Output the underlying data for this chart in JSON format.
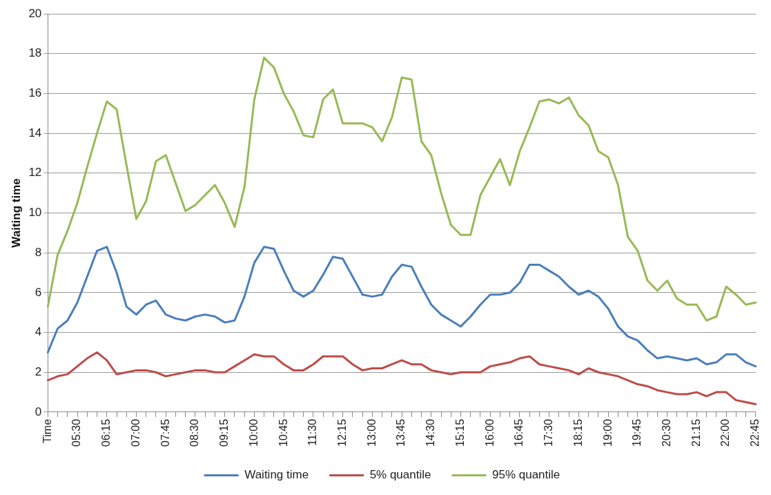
{
  "chart_data": {
    "type": "line",
    "ylabel": "Waiting time",
    "categories": [
      "Time",
      null,
      null,
      "05:30",
      null,
      null,
      "06:15",
      null,
      null,
      "07:00",
      null,
      null,
      "07:45",
      null,
      null,
      "08:30",
      null,
      null,
      "09:15",
      null,
      null,
      "10:00",
      null,
      null,
      "10:45",
      null,
      null,
      "11:30",
      null,
      null,
      "12:15",
      null,
      null,
      "13:00",
      null,
      null,
      "13:45",
      null,
      null,
      "14:30",
      null,
      null,
      "15:15",
      null,
      null,
      "16:00",
      null,
      null,
      "16:45",
      null,
      null,
      "17:30",
      null,
      null,
      "18:15",
      null,
      null,
      "19:00",
      null,
      null,
      "19:45",
      null,
      null,
      "20:30",
      null,
      null,
      "21:15",
      null,
      null,
      "22:00",
      null,
      null,
      "22:45"
    ],
    "series": [
      {
        "name": "Waiting time",
        "color": "#4a7ebb",
        "values": [
          3.0,
          4.2,
          4.6,
          5.5,
          6.8,
          8.1,
          8.3,
          7.0,
          5.3,
          4.9,
          5.4,
          5.6,
          4.9,
          4.7,
          4.6,
          4.8,
          4.9,
          4.8,
          4.5,
          4.6,
          5.8,
          7.5,
          8.3,
          8.2,
          7.1,
          6.1,
          5.8,
          6.1,
          6.9,
          7.8,
          7.7,
          6.8,
          5.9,
          5.8,
          5.9,
          6.8,
          7.4,
          7.3,
          6.3,
          5.4,
          4.9,
          4.6,
          4.3,
          4.8,
          5.4,
          5.9,
          5.9,
          6.0,
          6.5,
          7.4,
          7.4,
          7.1,
          6.8,
          6.3,
          5.9,
          6.1,
          5.8,
          5.2,
          4.3,
          3.8,
          3.6,
          3.1,
          2.7,
          2.8,
          2.7,
          2.6,
          2.7,
          2.4,
          2.5,
          2.9,
          2.9,
          2.5,
          2.3
        ]
      },
      {
        "name": "5% quantile",
        "color": "#be4b48",
        "values": [
          1.6,
          1.8,
          1.9,
          2.3,
          2.7,
          3.0,
          2.6,
          1.9,
          2.0,
          2.1,
          2.1,
          2.0,
          1.8,
          1.9,
          2.0,
          2.1,
          2.1,
          2.0,
          2.0,
          2.3,
          2.6,
          2.9,
          2.8,
          2.8,
          2.4,
          2.1,
          2.1,
          2.4,
          2.8,
          2.8,
          2.8,
          2.4,
          2.1,
          2.2,
          2.2,
          2.4,
          2.6,
          2.4,
          2.4,
          2.1,
          2.0,
          1.9,
          2.0,
          2.0,
          2.0,
          2.3,
          2.4,
          2.5,
          2.7,
          2.8,
          2.4,
          2.3,
          2.2,
          2.1,
          1.9,
          2.2,
          2.0,
          1.9,
          1.8,
          1.6,
          1.4,
          1.3,
          1.1,
          1.0,
          0.9,
          0.9,
          1.0,
          0.8,
          1.0,
          1.0,
          0.6,
          0.5,
          0.4
        ]
      },
      {
        "name": "95% quantile",
        "color": "#98b954",
        "values": [
          5.3,
          7.9,
          9.1,
          10.5,
          12.3,
          14.0,
          15.6,
          15.2,
          12.4,
          9.7,
          10.6,
          12.6,
          12.9,
          11.5,
          10.1,
          10.4,
          10.9,
          11.4,
          10.5,
          9.3,
          11.3,
          15.7,
          17.8,
          17.3,
          16.0,
          15.1,
          13.9,
          13.8,
          15.7,
          16.2,
          14.5,
          14.5,
          14.5,
          14.3,
          13.6,
          14.8,
          16.8,
          16.7,
          13.6,
          12.9,
          11.0,
          9.4,
          8.9,
          8.9,
          10.9,
          11.8,
          12.7,
          11.4,
          13.1,
          14.3,
          15.6,
          15.7,
          15.5,
          15.8,
          14.9,
          14.4,
          13.1,
          12.8,
          11.4,
          8.8,
          8.1,
          6.6,
          6.1,
          6.6,
          5.7,
          5.4,
          5.4,
          4.6,
          4.8,
          6.3,
          5.9,
          5.4,
          5.5
        ]
      }
    ],
    "ylim": [
      0,
      20
    ],
    "yticks": [
      0,
      2,
      4,
      6,
      8,
      10,
      12,
      14,
      16,
      18,
      20
    ],
    "grid": "y",
    "legend": "bottom",
    "marker": "none",
    "line_style": "solid"
  }
}
